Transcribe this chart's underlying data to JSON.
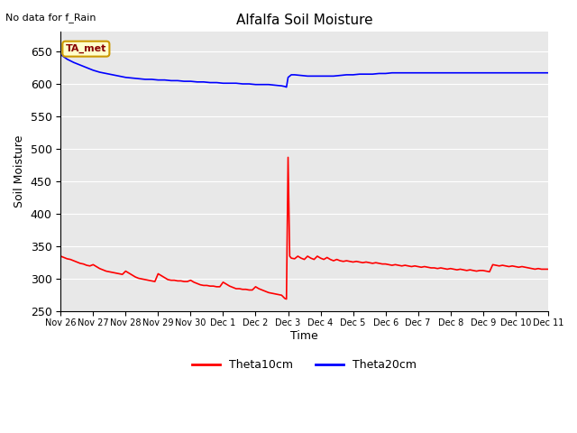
{
  "title": "Alfalfa Soil Moisture",
  "subtitle": "No data for f_Rain",
  "xlabel": "Time",
  "ylabel": "Soil Moisture",
  "ylim": [
    250,
    680
  ],
  "yticks": [
    250,
    300,
    350,
    400,
    450,
    500,
    550,
    600,
    650
  ],
  "bg_color": "#e8e8e8",
  "fig_color": "#ffffff",
  "annotation_text": "TA_met",
  "annotation_box_color": "#ffffcc",
  "annotation_border_color": "#cc9900",
  "annotation_text_color": "#880000",
  "legend_entries": [
    "Theta10cm",
    "Theta20cm"
  ],
  "line_colors": [
    "#ff0000",
    "#0000ff"
  ],
  "xtick_labels": [
    "Nov 26",
    "Nov 27",
    "Nov 28",
    "Nov 29",
    "Nov 30",
    "Dec 1",
    "Dec 2",
    "Dec 3",
    "Dec 4",
    "Dec 5",
    "Dec 6",
    "Dec 7",
    "Dec 8",
    "Dec 9",
    "Dec 10",
    "Dec 11"
  ],
  "theta10_x": [
    0.0,
    0.1,
    0.2,
    0.3,
    0.4,
    0.5,
    0.6,
    0.7,
    0.8,
    0.9,
    1.0,
    1.1,
    1.2,
    1.3,
    1.4,
    1.5,
    1.6,
    1.7,
    1.8,
    1.9,
    2.0,
    2.1,
    2.2,
    2.3,
    2.4,
    2.5,
    2.6,
    2.7,
    2.8,
    2.9,
    3.0,
    3.1,
    3.2,
    3.3,
    3.4,
    3.5,
    3.6,
    3.7,
    3.8,
    3.9,
    4.0,
    4.1,
    4.2,
    4.3,
    4.4,
    4.5,
    4.6,
    4.7,
    4.8,
    4.9,
    5.0,
    5.1,
    5.2,
    5.3,
    5.4,
    5.5,
    5.6,
    5.7,
    5.8,
    5.9,
    6.0,
    6.1,
    6.2,
    6.3,
    6.4,
    6.5,
    6.6,
    6.7,
    6.8,
    6.82,
    6.84,
    6.86,
    6.88,
    6.9,
    6.95,
    7.0,
    7.05,
    7.1,
    7.2,
    7.3,
    7.4,
    7.5,
    7.6,
    7.7,
    7.8,
    7.9,
    8.0,
    8.1,
    8.2,
    8.3,
    8.4,
    8.5,
    8.6,
    8.7,
    8.8,
    8.9,
    9.0,
    9.1,
    9.2,
    9.3,
    9.4,
    9.5,
    9.6,
    9.7,
    9.8,
    9.9,
    10.0,
    10.1,
    10.2,
    10.3,
    10.4,
    10.5,
    10.6,
    10.7,
    10.8,
    10.9,
    11.0,
    11.1,
    11.2,
    11.3,
    11.4,
    11.5,
    11.6,
    11.7,
    11.8,
    11.9,
    12.0,
    12.1,
    12.2,
    12.3,
    12.4,
    12.5,
    12.6,
    12.7,
    12.8,
    12.9,
    13.0,
    13.1,
    13.2,
    13.3,
    13.4,
    13.5,
    13.6,
    13.7,
    13.8,
    13.9,
    14.0,
    14.1,
    14.2,
    14.3,
    14.4,
    14.5,
    14.6,
    14.7,
    14.8,
    14.9,
    15.0
  ],
  "theta10_y": [
    335,
    333,
    331,
    330,
    328,
    326,
    324,
    323,
    321,
    320,
    322,
    319,
    316,
    314,
    312,
    311,
    310,
    309,
    308,
    307,
    312,
    309,
    306,
    303,
    301,
    300,
    299,
    298,
    297,
    296,
    308,
    305,
    302,
    299,
    298,
    298,
    297,
    297,
    296,
    296,
    298,
    295,
    293,
    291,
    290,
    290,
    289,
    289,
    288,
    288,
    295,
    292,
    289,
    287,
    285,
    285,
    284,
    284,
    283,
    283,
    288,
    285,
    283,
    281,
    279,
    278,
    277,
    276,
    275,
    274,
    273,
    272,
    271,
    270,
    269,
    487,
    335,
    332,
    331,
    335,
    332,
    330,
    335,
    332,
    330,
    335,
    332,
    330,
    333,
    330,
    328,
    330,
    328,
    327,
    328,
    327,
    326,
    327,
    326,
    325,
    326,
    325,
    324,
    325,
    324,
    323,
    323,
    322,
    321,
    322,
    321,
    320,
    321,
    320,
    319,
    320,
    319,
    318,
    319,
    318,
    317,
    317,
    316,
    317,
    316,
    315,
    316,
    315,
    314,
    315,
    314,
    313,
    314,
    313,
    312,
    313,
    313,
    312,
    311,
    322,
    321,
    320,
    321,
    320,
    319,
    320,
    319,
    318,
    319,
    318,
    317,
    316,
    315,
    316,
    315,
    315,
    315
  ],
  "theta20_x": [
    0.0,
    0.2,
    0.4,
    0.6,
    0.8,
    1.0,
    1.2,
    1.4,
    1.6,
    1.8,
    2.0,
    2.2,
    2.4,
    2.6,
    2.8,
    3.0,
    3.2,
    3.4,
    3.6,
    3.8,
    4.0,
    4.2,
    4.4,
    4.6,
    4.8,
    5.0,
    5.2,
    5.4,
    5.6,
    5.8,
    6.0,
    6.2,
    6.4,
    6.6,
    6.8,
    6.9,
    6.95,
    7.0,
    7.1,
    7.2,
    7.4,
    7.6,
    7.8,
    8.0,
    8.2,
    8.4,
    8.6,
    8.8,
    9.0,
    9.2,
    9.4,
    9.6,
    9.8,
    10.0,
    10.2,
    10.4,
    10.6,
    10.8,
    11.0,
    11.2,
    11.4,
    11.6,
    11.8,
    12.0,
    12.2,
    12.4,
    12.6,
    12.8,
    13.0,
    13.2,
    13.4,
    13.6,
    13.8,
    14.0,
    14.2,
    14.4,
    14.6,
    14.8,
    15.0
  ],
  "theta20_y": [
    645,
    638,
    633,
    629,
    625,
    621,
    618,
    616,
    614,
    612,
    610,
    609,
    608,
    607,
    607,
    606,
    606,
    605,
    605,
    604,
    604,
    603,
    603,
    602,
    602,
    601,
    601,
    601,
    600,
    600,
    599,
    599,
    599,
    598,
    597,
    596,
    595,
    610,
    614,
    614,
    613,
    612,
    612,
    612,
    612,
    612,
    613,
    614,
    614,
    615,
    615,
    615,
    616,
    616,
    617,
    617,
    617,
    617,
    617,
    617,
    617,
    617,
    617,
    617,
    617,
    617,
    617,
    617,
    617,
    617,
    617,
    617,
    617,
    617,
    617,
    617,
    617,
    617,
    617
  ]
}
